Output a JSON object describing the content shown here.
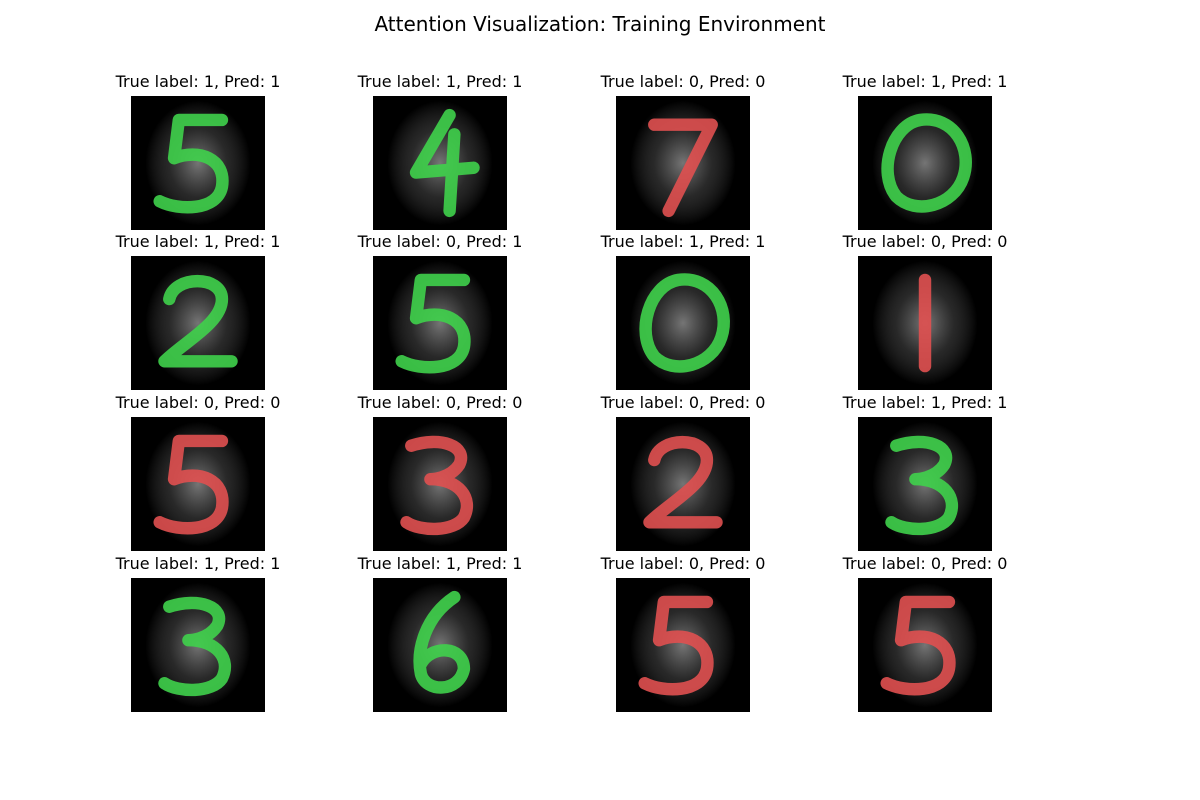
{
  "title": "Attention Visualization: Training Environment",
  "colors": {
    "correct_stroke": "#3fd14b",
    "wrong_stroke": "#e05050",
    "background": "#000000"
  },
  "chart_data": {
    "type": "image-grid",
    "title": "Attention Visualization: Training Environment",
    "rows": 4,
    "cols": 4,
    "panels": [
      {
        "true_label": 1,
        "pred": 1,
        "digit": "5",
        "overlay": "green",
        "caption": "True label: 1, Pred: 1"
      },
      {
        "true_label": 1,
        "pred": 1,
        "digit": "4",
        "overlay": "green",
        "caption": "True label: 1, Pred: 1"
      },
      {
        "true_label": 0,
        "pred": 0,
        "digit": "7",
        "overlay": "red",
        "caption": "True label: 0, Pred: 0"
      },
      {
        "true_label": 1,
        "pred": 1,
        "digit": "0",
        "overlay": "green",
        "caption": "True label: 1, Pred: 1"
      },
      {
        "true_label": 1,
        "pred": 1,
        "digit": "2",
        "overlay": "green",
        "caption": "True label: 1, Pred: 1"
      },
      {
        "true_label": 0,
        "pred": 1,
        "digit": "5",
        "overlay": "green",
        "caption": "True label: 0, Pred: 1"
      },
      {
        "true_label": 1,
        "pred": 1,
        "digit": "0",
        "overlay": "green",
        "caption": "True label: 1, Pred: 1"
      },
      {
        "true_label": 0,
        "pred": 0,
        "digit": "1",
        "overlay": "red",
        "caption": "True label: 0, Pred: 0"
      },
      {
        "true_label": 0,
        "pred": 0,
        "digit": "5",
        "overlay": "red",
        "caption": "True label: 0, Pred: 0"
      },
      {
        "true_label": 0,
        "pred": 0,
        "digit": "3",
        "overlay": "red",
        "caption": "True label: 0, Pred: 0"
      },
      {
        "true_label": 0,
        "pred": 0,
        "digit": "2",
        "overlay": "red",
        "caption": "True label: 0, Pred: 0"
      },
      {
        "true_label": 1,
        "pred": 1,
        "digit": "3",
        "overlay": "green",
        "caption": "True label: 1, Pred: 1"
      },
      {
        "true_label": 1,
        "pred": 1,
        "digit": "3",
        "overlay": "green",
        "caption": "True label: 1, Pred: 1"
      },
      {
        "true_label": 1,
        "pred": 1,
        "digit": "6",
        "overlay": "green",
        "caption": "True label: 1, Pred: 1"
      },
      {
        "true_label": 0,
        "pred": 0,
        "digit": "5",
        "overlay": "red",
        "caption": "True label: 0, Pred: 0"
      },
      {
        "true_label": 0,
        "pred": 0,
        "digit": "5",
        "overlay": "red",
        "caption": "True label: 0, Pred: 0"
      }
    ]
  }
}
